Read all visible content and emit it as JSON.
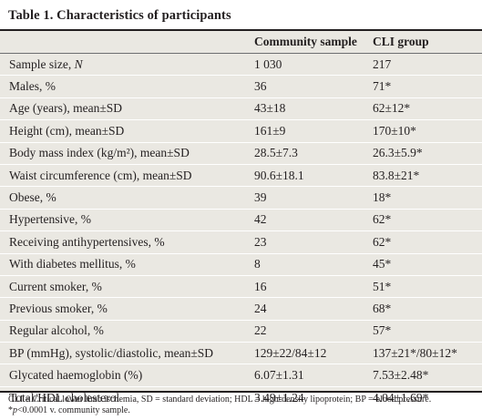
{
  "title": "Table 1. Characteristics of participants",
  "columns": [
    "",
    "Community sample",
    "CLI group"
  ],
  "rows": [
    {
      "label": "Sample size, ",
      "label_italic": "N",
      "label_after": "",
      "community": "1 030",
      "cli": "217"
    },
    {
      "label": "Males, %",
      "label_italic": "",
      "label_after": "",
      "community": "36",
      "cli": "71*"
    },
    {
      "label": "Age (years), mean±SD",
      "label_italic": "",
      "label_after": "",
      "community": "43±18",
      "cli": "62±12*"
    },
    {
      "label": "Height (cm), mean±SD",
      "label_italic": "",
      "label_after": "",
      "community": "161±9",
      "cli": "170±10*"
    },
    {
      "label": "Body mass index (kg/m²), mean±SD",
      "label_italic": "",
      "label_after": "",
      "community": "28.5±7.3",
      "cli": "26.3±5.9*"
    },
    {
      "label": "Waist circumference (cm), mean±SD",
      "label_italic": "",
      "label_after": "",
      "community": "90.6±18.1",
      "cli": "83.8±21*"
    },
    {
      "label": "Obese, %",
      "label_italic": "",
      "label_after": "",
      "community": "39",
      "cli": "18*"
    },
    {
      "label": "Hypertensive, %",
      "label_italic": "",
      "label_after": "",
      "community": "42",
      "cli": "62*"
    },
    {
      "label": "Receiving antihypertensives, %",
      "label_italic": "",
      "label_after": "",
      "community": "23",
      "cli": "62*"
    },
    {
      "label": "With diabetes mellitus, %",
      "label_italic": "",
      "label_after": "",
      "community": "8",
      "cli": "45*"
    },
    {
      "label": "Current smoker, %",
      "label_italic": "",
      "label_after": "",
      "community": "16",
      "cli": "51*"
    },
    {
      "label": "Previous smoker, %",
      "label_italic": "",
      "label_after": "",
      "community": "24",
      "cli": "68*"
    },
    {
      "label": "Regular alcohol, %",
      "label_italic": "",
      "label_after": "",
      "community": "22",
      "cli": "57*"
    },
    {
      "label": "BP (mmHg), systolic/diastolic, mean±SD",
      "label_italic": "",
      "label_after": "",
      "community": "129±22/84±12",
      "cli": "137±21*/80±12*"
    },
    {
      "label": "Glycated haemoglobin (%)",
      "label_italic": "",
      "label_after": "",
      "community": "6.07±1.31",
      "cli": "7.53±2.48*"
    },
    {
      "label": "Total/HDL cholesterol",
      "label_italic": "",
      "label_after": "",
      "community": "3.49±1.24",
      "cli": "4.04±1.69*"
    }
  ],
  "footnotes": {
    "line1": "CLI = Critical lower limb ischemia, SD = standard deviation; HDL = high-density lipoprotein; BP = blood pressure.",
    "line2_prefix": "*",
    "line2_italic": "p",
    "line2_rest": "<0.0001 v. community sample."
  }
}
